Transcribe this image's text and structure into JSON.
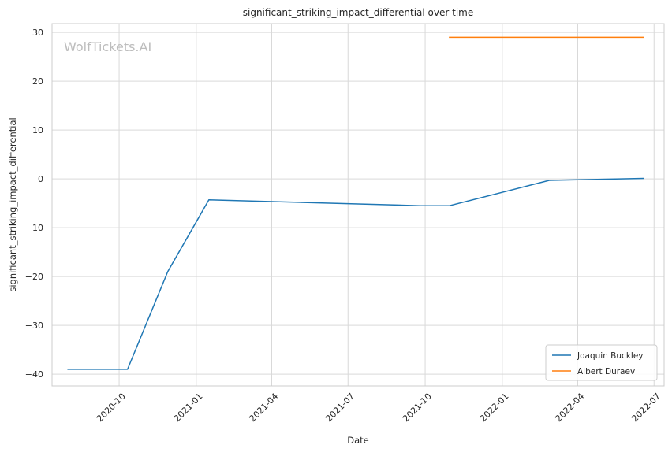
{
  "chart_data": {
    "type": "line",
    "title": "significant_striking_impact_differential over time",
    "xlabel": "Date",
    "ylabel": "significant_striking_impact_differential",
    "watermark": "WolfTickets.AI",
    "x_ticks": [
      "2020-10",
      "2021-01",
      "2021-04",
      "2021-07",
      "2021-10",
      "2022-01",
      "2022-04",
      "2022-07"
    ],
    "y_ticks": [
      30,
      20,
      10,
      0,
      -10,
      -20,
      -30,
      -40
    ],
    "xlim": [
      "2020-07-13",
      "2022-07-13"
    ],
    "ylim": [
      -42.4,
      31.8
    ],
    "grid": true,
    "legend_position": "lower-right",
    "series": [
      {
        "name": "Joaquin Buckley",
        "color": "#1f77b4",
        "points": [
          {
            "x": "2020-08-01",
            "y": -39
          },
          {
            "x": "2020-10-11",
            "y": -39
          },
          {
            "x": "2020-11-28",
            "y": -19
          },
          {
            "x": "2021-01-16",
            "y": -4.3
          },
          {
            "x": "2021-09-25",
            "y": -5.5
          },
          {
            "x": "2021-10-30",
            "y": -5.5
          },
          {
            "x": "2022-02-26",
            "y": -0.3
          },
          {
            "x": "2022-06-18",
            "y": 0.1
          }
        ]
      },
      {
        "name": "Albert Duraev",
        "color": "#ff7f0e",
        "points": [
          {
            "x": "2021-10-30",
            "y": 29
          },
          {
            "x": "2022-06-18",
            "y": 29
          }
        ]
      }
    ]
  }
}
